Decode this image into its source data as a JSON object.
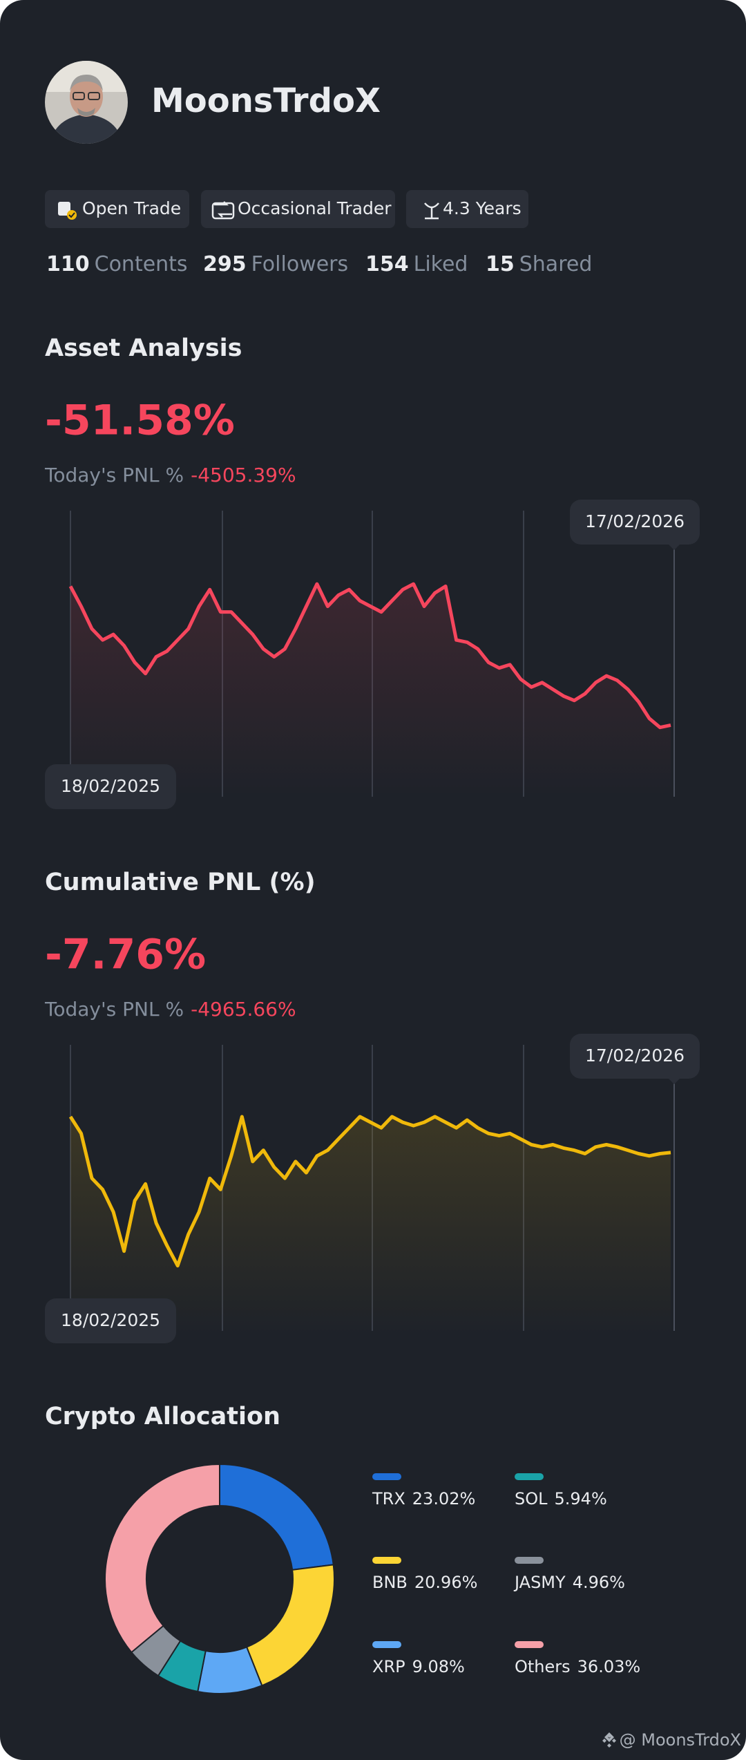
{
  "profile": {
    "name": "MoonsTrdoX",
    "tags": [
      "Open Trade",
      "Occasional Trader",
      "4.3 Years"
    ],
    "stats": [
      {
        "count": "110",
        "label": "Contents"
      },
      {
        "count": "295",
        "label": "Followers"
      },
      {
        "count": "154",
        "label": "Liked"
      },
      {
        "count": "15",
        "label": "Shared"
      }
    ],
    "footer": "@ MoonsTrdoX"
  },
  "chart_data": [
    {
      "type": "line",
      "title": "Asset Analysis",
      "headline": "-51.58%",
      "pnl_label": "Today's PNL %",
      "pnl_value": "-4505.39%",
      "start_label": "18/02/2025",
      "end_label": "17/02/2026",
      "color": "#f6465d",
      "ylim": [
        0,
        140
      ],
      "values": [
        133,
        115,
        95,
        85,
        90,
        80,
        65,
        55,
        70,
        75,
        85,
        95,
        115,
        130,
        110,
        110,
        100,
        90,
        77,
        70,
        77,
        95,
        115,
        135,
        115,
        125,
        130,
        120,
        115,
        110,
        120,
        130,
        135,
        115,
        127,
        133,
        85,
        83,
        77,
        65,
        60,
        63,
        50,
        43,
        47,
        41,
        35,
        31,
        37,
        47,
        53,
        49,
        41,
        30,
        15,
        7,
        9
      ]
    },
    {
      "type": "line",
      "title": "Cumulative PNL (%)",
      "headline": "-7.76%",
      "pnl_label": "Today's PNL %",
      "pnl_value": "-4965.66%",
      "start_label": "18/02/2025",
      "end_label": "17/02/2026",
      "color": "#f0b90b",
      "ylim": [
        0,
        140
      ],
      "values": [
        140,
        125,
        85,
        75,
        55,
        20,
        65,
        80,
        45,
        25,
        7,
        35,
        55,
        85,
        75,
        105,
        140,
        100,
        110,
        95,
        85,
        100,
        90,
        105,
        110,
        120,
        130,
        140,
        135,
        130,
        140,
        135,
        132,
        135,
        140,
        135,
        130,
        137,
        130,
        125,
        123,
        125,
        120,
        115,
        113,
        115,
        112,
        110,
        107,
        113,
        115,
        113,
        110,
        107,
        105,
        107,
        108
      ]
    },
    {
      "type": "donut",
      "title": "Crypto Allocation",
      "categories": [
        "TRX",
        "BNB",
        "XRP",
        "SOL",
        "JASMY",
        "Others"
      ],
      "values": [
        23.02,
        20.96,
        9.08,
        5.94,
        4.96,
        36.03
      ],
      "value_labels": [
        "23.02%",
        "20.96%",
        "9.08%",
        "5.94%",
        "4.96%",
        "36.03%"
      ],
      "colors": [
        "#1f6fd8",
        "#fcd535",
        "#5ea8f5",
        "#1aa3a8",
        "#8a919b",
        "#f5a0a8"
      ]
    }
  ]
}
